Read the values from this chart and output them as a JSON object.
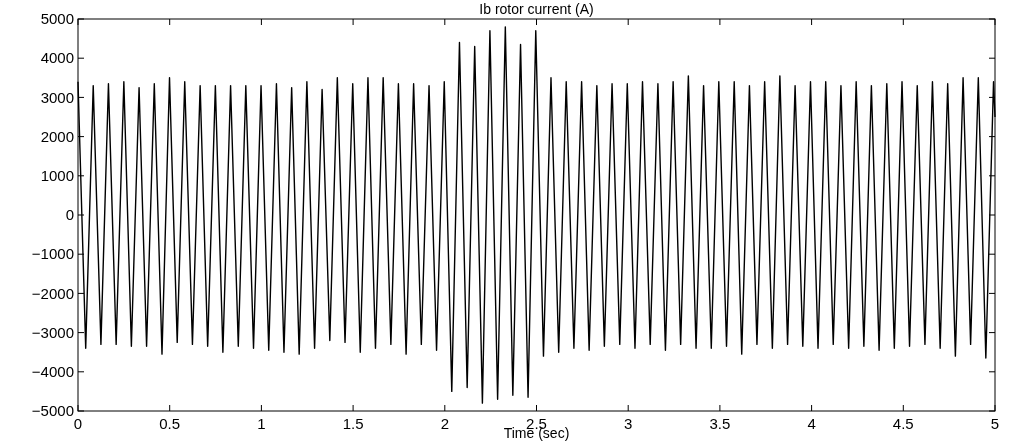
{
  "chart_data": {
    "type": "line",
    "title": "Ib rotor current (A)",
    "xlabel": "Time (sec)",
    "x": [
      0,
      0.042,
      0.083,
      0.125,
      0.166,
      0.208,
      0.25,
      0.291,
      0.333,
      0.374,
      0.416,
      0.458,
      0.499,
      0.541,
      0.582,
      0.624,
      0.666,
      0.707,
      0.749,
      0.79,
      0.832,
      0.874,
      0.915,
      0.957,
      0.998,
      1.04,
      1.082,
      1.123,
      1.165,
      1.206,
      1.248,
      1.29,
      1.331,
      1.373,
      1.414,
      1.456,
      1.498,
      1.539,
      1.581,
      1.622,
      1.664,
      1.706,
      1.747,
      1.789,
      1.83,
      1.872,
      1.914,
      1.955,
      1.997,
      2.038,
      2.08,
      2.122,
      2.163,
      2.205,
      2.246,
      2.288,
      2.33,
      2.371,
      2.413,
      2.454,
      2.496,
      2.538,
      2.579,
      2.621,
      2.662,
      2.704,
      2.746,
      2.787,
      2.829,
      2.87,
      2.912,
      2.954,
      2.995,
      3.037,
      3.078,
      3.12,
      3.162,
      3.203,
      3.245,
      3.286,
      3.328,
      3.37,
      3.411,
      3.453,
      3.494,
      3.536,
      3.578,
      3.619,
      3.661,
      3.702,
      3.744,
      3.786,
      3.827,
      3.869,
      3.91,
      3.952,
      3.994,
      4.035,
      4.077,
      4.118,
      4.16,
      4.202,
      4.243,
      4.285,
      4.326,
      4.368,
      4.41,
      4.451,
      4.493,
      4.534,
      4.576,
      4.618,
      4.659,
      4.701,
      4.742,
      4.784,
      4.826,
      4.867,
      4.909,
      4.95,
      4.992,
      5
    ],
    "series": [
      {
        "color": "#000000",
        "values": [
          3400,
          -3400,
          3300,
          -3300,
          3350,
          -3300,
          3400,
          -3350,
          3250,
          -3350,
          3350,
          -3550,
          3500,
          -3250,
          3400,
          -3300,
          3300,
          -3350,
          3300,
          -3500,
          3300,
          -3350,
          3300,
          -3400,
          3300,
          -3450,
          3350,
          -3500,
          3250,
          -3550,
          3400,
          -3400,
          3200,
          -3200,
          3500,
          -3250,
          3350,
          -3500,
          3500,
          -3400,
          3500,
          -3300,
          3350,
          -3550,
          3350,
          -3300,
          3300,
          -3450,
          3400,
          -4500,
          4400,
          -4400,
          4300,
          -4800,
          4700,
          -4700,
          4800,
          -4600,
          4350,
          -4650,
          4700,
          -3600,
          3500,
          -3500,
          3400,
          -3400,
          3400,
          -3450,
          3300,
          -3350,
          3350,
          -3300,
          3350,
          -3400,
          3400,
          -3300,
          3350,
          -3450,
          3400,
          -3300,
          3550,
          -3400,
          3300,
          -3400,
          3400,
          -3350,
          3400,
          -3550,
          3300,
          -3300,
          3400,
          -3400,
          3550,
          -3300,
          3300,
          -3350,
          3400,
          -3400,
          3400,
          -3300,
          3300,
          -3400,
          3400,
          -3350,
          3300,
          -3450,
          3350,
          -3400,
          3400,
          -3350,
          3300,
          -3300,
          3400,
          -3400,
          3350,
          -3600,
          3500,
          -3300,
          3500,
          -3650,
          3400,
          2500
        ]
      }
    ],
    "xlim": [
      0,
      5
    ],
    "xticks": [
      0,
      0.5,
      1,
      1.5,
      2,
      2.5,
      3,
      3.5,
      4,
      4.5,
      5
    ],
    "ylim": [
      -5000,
      5000
    ],
    "yticks": [
      -5000,
      -4000,
      -3000,
      -2000,
      -1000,
      0,
      1000,
      2000,
      3000,
      4000,
      5000
    ],
    "grid": false
  }
}
